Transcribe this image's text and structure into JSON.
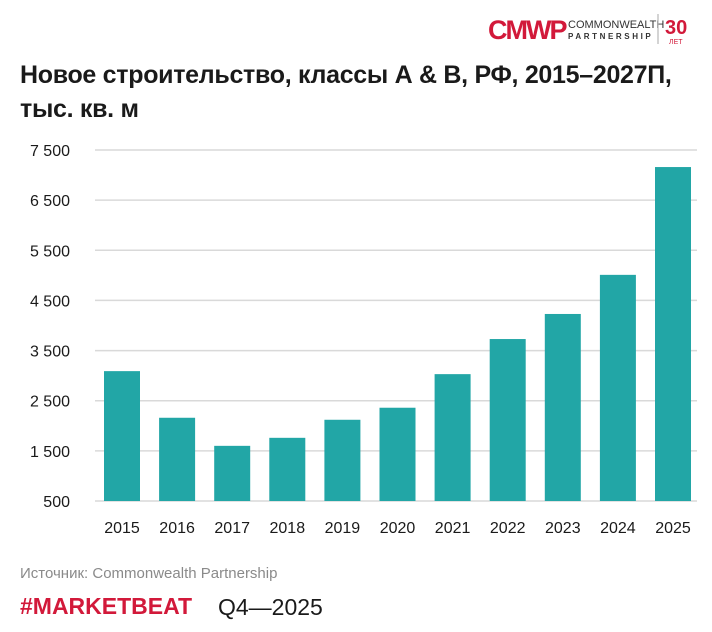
{
  "logo": {
    "text": "CMWP",
    "line1": "COMMONWEALTH",
    "line2": "PARTNERSHIP",
    "years": "30",
    "years_label": "ЛЕТ",
    "color": "#d2193a"
  },
  "title": "Новое строительство, классы А & В, РФ, 2015–2027П, тыс. кв. м",
  "chart_data": {
    "type": "bar",
    "title": "Новое строительство, классы А & В, РФ, 2015–2027П, тыс. кв. м",
    "categories": [
      "2015",
      "2016",
      "2017",
      "2018",
      "2019",
      "2020",
      "2021",
      "2022",
      "2023",
      "2024",
      "2025"
    ],
    "values": [
      3090,
      2160,
      1600,
      1760,
      2120,
      2360,
      3030,
      3730,
      4230,
      5010,
      7160
    ],
    "ylim": [
      500,
      7500
    ],
    "yticks": [
      500,
      1500,
      2500,
      3500,
      4500,
      5500,
      6500,
      7500
    ],
    "ytick_labels": [
      "500",
      "1 500",
      "2 500",
      "3 500",
      "4 500",
      "5 500",
      "6 500",
      "7 500"
    ],
    "grid": true,
    "bar_color": "#22a6a6"
  },
  "footer": {
    "source": "Источник: Commonwealth Partnership",
    "brand": "#MARKETBEAT",
    "period": "Q4—2025"
  }
}
